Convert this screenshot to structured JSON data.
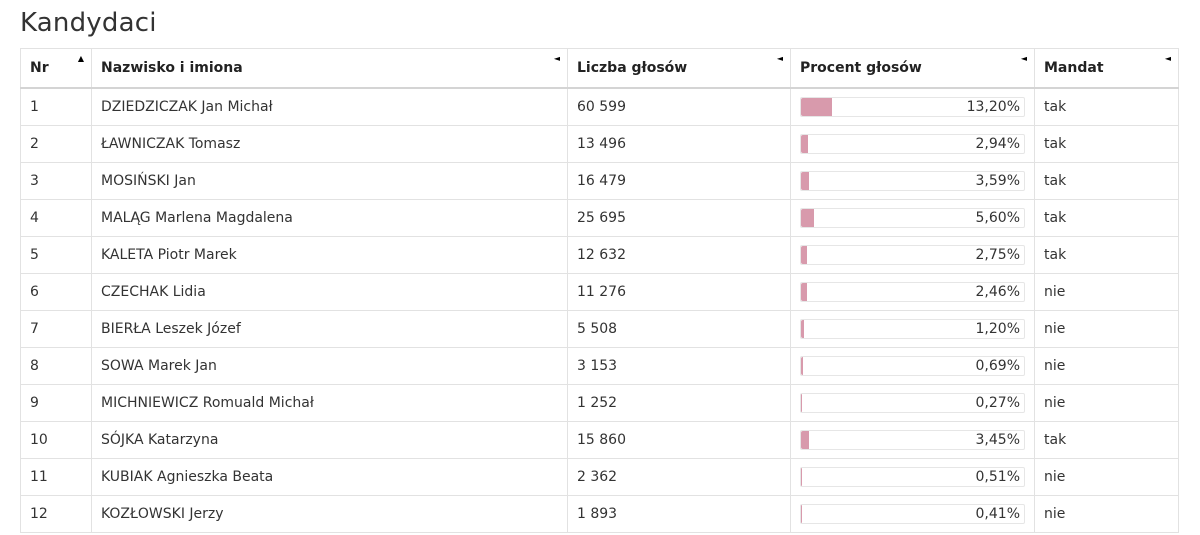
{
  "title": "Kandydaci",
  "columns": {
    "nr": "Nr",
    "name": "Nazwisko i imiona",
    "votes": "Liczba głosów",
    "percent": "Procent głosów",
    "mandate": "Mandat"
  },
  "sort_icons": {
    "nr": "▲",
    "name": "◄",
    "votes": "◄",
    "percent": "◄",
    "mandate": "◄"
  },
  "bar_color": "#d89aac",
  "rows": [
    {
      "nr": "1",
      "name": "DZIEDZICZAK Jan Michał",
      "votes": "60 599",
      "percent_label": "13,20%",
      "percent": 13.2,
      "mandate": "tak"
    },
    {
      "nr": "2",
      "name": "ŁAWNICZAK Tomasz",
      "votes": "13 496",
      "percent_label": "2,94%",
      "percent": 2.94,
      "mandate": "tak"
    },
    {
      "nr": "3",
      "name": "MOSIŃSKI Jan",
      "votes": "16 479",
      "percent_label": "3,59%",
      "percent": 3.59,
      "mandate": "tak"
    },
    {
      "nr": "4",
      "name": "MALĄG Marlena Magdalena",
      "votes": "25 695",
      "percent_label": "5,60%",
      "percent": 5.6,
      "mandate": "tak"
    },
    {
      "nr": "5",
      "name": "KALETA Piotr Marek",
      "votes": "12 632",
      "percent_label": "2,75%",
      "percent": 2.75,
      "mandate": "tak"
    },
    {
      "nr": "6",
      "name": "CZECHAK Lidia",
      "votes": "11 276",
      "percent_label": "2,46%",
      "percent": 2.46,
      "mandate": "nie"
    },
    {
      "nr": "7",
      "name": "BIERŁA Leszek Józef",
      "votes": "5 508",
      "percent_label": "1,20%",
      "percent": 1.2,
      "mandate": "nie"
    },
    {
      "nr": "8",
      "name": "SOWA Marek Jan",
      "votes": "3 153",
      "percent_label": "0,69%",
      "percent": 0.69,
      "mandate": "nie"
    },
    {
      "nr": "9",
      "name": "MICHNIEWICZ Romuald Michał",
      "votes": "1 252",
      "percent_label": "0,27%",
      "percent": 0.27,
      "mandate": "nie"
    },
    {
      "nr": "10",
      "name": "SÓJKA Katarzyna",
      "votes": "15 860",
      "percent_label": "3,45%",
      "percent": 3.45,
      "mandate": "tak"
    },
    {
      "nr": "11",
      "name": "KUBIAK Agnieszka Beata",
      "votes": "2 362",
      "percent_label": "0,51%",
      "percent": 0.51,
      "mandate": "nie"
    },
    {
      "nr": "12",
      "name": "KOZŁOWSKI Jerzy",
      "votes": "1 893",
      "percent_label": "0,41%",
      "percent": 0.41,
      "mandate": "nie"
    }
  ]
}
